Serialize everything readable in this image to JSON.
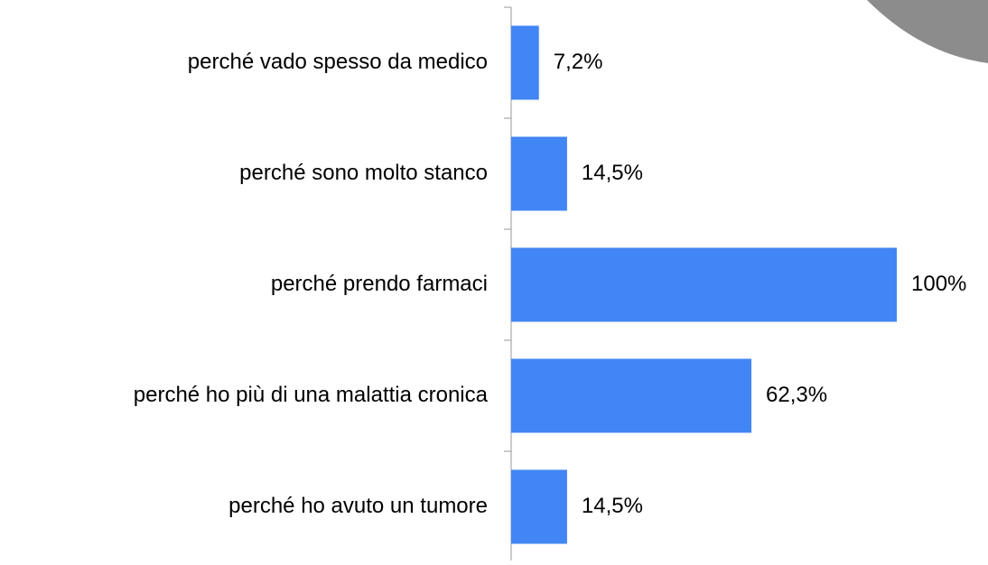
{
  "chart_data": {
    "type": "barh",
    "categories": [
      "perché vado spesso da medico",
      "perché sono molto stanco",
      "perché prendo farmaci",
      "perché ho più di una malattia cronica",
      "perché ho avuto un tumore"
    ],
    "values": [
      7.2,
      14.5,
      100,
      62.3,
      14.5
    ],
    "value_labels": [
      "7,2%",
      "14,5%",
      "100%",
      "62,3%",
      "14,5%"
    ],
    "color": "#4285f4",
    "xlim": [
      0,
      100
    ]
  }
}
